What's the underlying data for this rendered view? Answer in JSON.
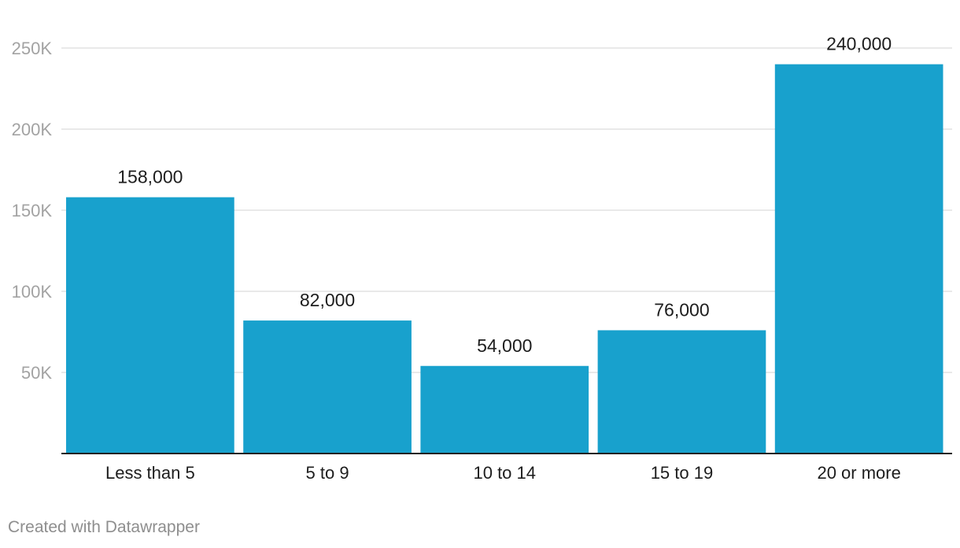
{
  "chart_data": {
    "type": "bar",
    "title": "",
    "xlabel": "",
    "ylabel": "",
    "categories": [
      "Less than 5",
      "5 to 9",
      "10 to 14",
      "15 to 19",
      "20 or more"
    ],
    "values": [
      158000,
      82000,
      54000,
      76000,
      240000
    ],
    "value_labels": [
      "158,000",
      "82,000",
      "54,000",
      "76,000",
      "240,000"
    ],
    "ylim": [
      0,
      250000
    ],
    "yticks": [
      50000,
      100000,
      150000,
      200000,
      250000
    ],
    "ytick_labels": [
      "50K",
      "100K",
      "150K",
      "200K",
      "250K"
    ],
    "grid": true,
    "bar_color": "#18a1cd"
  },
  "footer": {
    "credit": "Created with Datawrapper"
  }
}
